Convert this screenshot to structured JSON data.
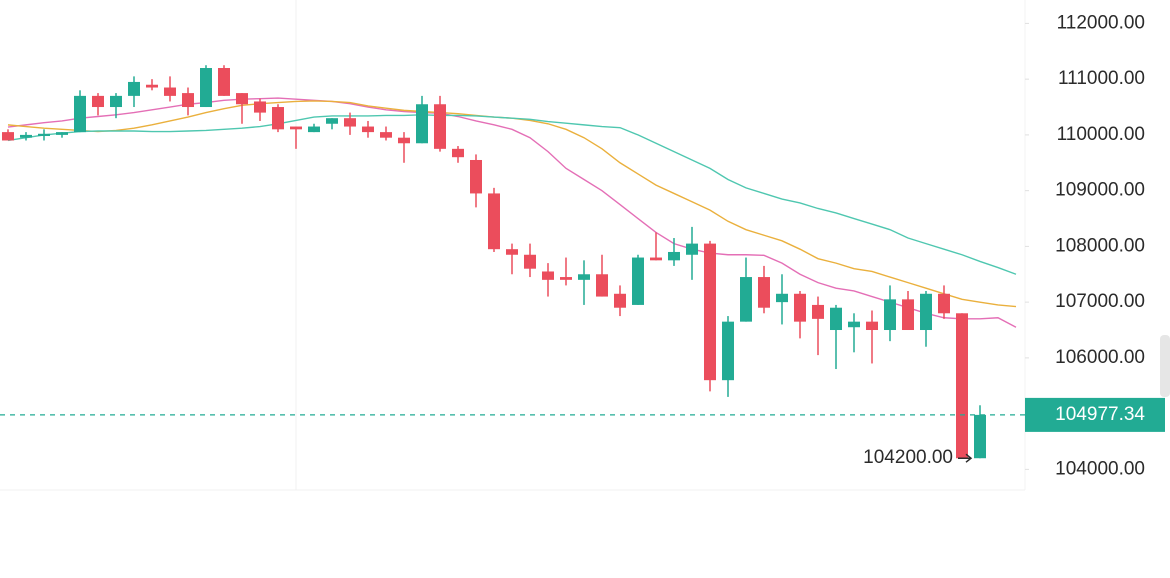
{
  "chart_data": {
    "type": "candlestick",
    "up_color": "#22ab94",
    "down_color": "#eb4d5c",
    "ylim": [
      103630,
      112420
    ],
    "yticks": [
      {
        "value": 104000,
        "label": "104000.00"
      },
      {
        "value": 106000,
        "label": "106000.00"
      },
      {
        "value": 107000,
        "label": "107000.00"
      },
      {
        "value": 108000,
        "label": "108000.00"
      },
      {
        "value": 109000,
        "label": "109000.00"
      },
      {
        "value": 110000,
        "label": "110000.00"
      },
      {
        "value": 111000,
        "label": "111000.00"
      },
      {
        "value": 112000,
        "label": "112000.00"
      }
    ],
    "candles": {
      "open": [
        110050,
        109950,
        109980,
        110000,
        110050,
        110700,
        110500,
        110700,
        110900,
        110850,
        110750,
        110500,
        111200,
        110750,
        110600,
        110500,
        110150,
        110050,
        110200,
        110300,
        110150,
        110050,
        109950,
        109850,
        110550,
        109750,
        109550,
        108950,
        107950,
        107850,
        107550,
        107450,
        107400,
        107500,
        107150,
        106950,
        107800,
        107750,
        107850,
        108050,
        105600,
        106650,
        107450,
        107000,
        107150,
        106950,
        106500,
        106550,
        106650,
        106500,
        107050,
        106500,
        107150,
        106800,
        104200
      ],
      "high": [
        110100,
        110050,
        110100,
        110050,
        110800,
        110750,
        110750,
        111050,
        111000,
        111050,
        110850,
        111250,
        111250,
        110750,
        110650,
        110550,
        110150,
        110200,
        110300,
        110400,
        110250,
        110150,
        110050,
        110700,
        110700,
        109800,
        109650,
        109050,
        108050,
        108050,
        107700,
        107800,
        107750,
        107850,
        107300,
        107850,
        108250,
        108150,
        108350,
        108100,
        106750,
        107800,
        107650,
        107500,
        107200,
        107100,
        106950,
        106800,
        106850,
        107300,
        107200,
        107200,
        107300,
        106800,
        105150
      ],
      "low": [
        109900,
        109900,
        109900,
        109950,
        110050,
        110350,
        110300,
        110500,
        110800,
        110600,
        110350,
        110500,
        110700,
        110200,
        110250,
        110050,
        109750,
        110050,
        110100,
        110000,
        109950,
        109900,
        109500,
        109850,
        109700,
        109500,
        108700,
        107900,
        107500,
        107450,
        107100,
        107300,
        106950,
        107100,
        106750,
        106950,
        107750,
        107650,
        107400,
        105400,
        105300,
        106650,
        106800,
        106600,
        106350,
        106050,
        105800,
        106100,
        105900,
        106300,
        106500,
        106200,
        106700,
        104200,
        104200
      ],
      "close": [
        109900,
        110000,
        110020,
        110050,
        110700,
        110500,
        110700,
        110950,
        110850,
        110700,
        110500,
        111200,
        110700,
        110550,
        110400,
        110100,
        110100,
        110150,
        110300,
        110150,
        110050,
        109950,
        109850,
        110550,
        109750,
        109600,
        108950,
        107950,
        107850,
        107600,
        107400,
        107400,
        107500,
        107100,
        106900,
        107800,
        107750,
        107900,
        108050,
        105600,
        106650,
        107450,
        106900,
        107150,
        106650,
        106700,
        106900,
        106650,
        106500,
        107050,
        106500,
        107150,
        106800,
        104200,
        104977.34
      ]
    },
    "ma_lines": [
      {
        "color": "#e46fb6",
        "values": [
          110140,
          110180,
          110220,
          110250,
          110300,
          110330,
          110360,
          110400,
          110450,
          110500,
          110550,
          110580,
          110620,
          110640,
          110650,
          110660,
          110640,
          110620,
          110600,
          110560,
          110500,
          110450,
          110420,
          110400,
          110390,
          110330,
          110250,
          110180,
          110100,
          109950,
          109700,
          109400,
          109200,
          109000,
          108750,
          108500,
          108250,
          108050,
          107950,
          107880,
          107850,
          107850,
          107840,
          107700,
          107500,
          107350,
          107250,
          107200,
          107100,
          107000,
          106900,
          106800,
          106720,
          106700,
          106700,
          106720,
          106550
        ]
      },
      {
        "color": "#eab03d",
        "values": [
          110180,
          110150,
          110120,
          110100,
          110080,
          110060,
          110080,
          110120,
          110180,
          110250,
          110320,
          110400,
          110470,
          110530,
          110560,
          110580,
          110600,
          110610,
          110600,
          110580,
          110520,
          110480,
          110440,
          110420,
          110400,
          110380,
          110350,
          110320,
          110300,
          110260,
          110200,
          110100,
          109950,
          109750,
          109500,
          109300,
          109100,
          108950,
          108800,
          108650,
          108450,
          108300,
          108200,
          108100,
          107950,
          107780,
          107700,
          107600,
          107550,
          107450,
          107350,
          107250,
          107150,
          107050,
          107000,
          106950,
          106920
        ]
      },
      {
        "color": "#4fc7b0",
        "values": [
          109900,
          109950,
          110000,
          110030,
          110060,
          110070,
          110070,
          110070,
          110060,
          110060,
          110070,
          110080,
          110100,
          110120,
          110150,
          110200,
          110260,
          110320,
          110340,
          110340,
          110340,
          110350,
          110350,
          110360,
          110350,
          110350,
          110340,
          110320,
          110300,
          110280,
          110240,
          110210,
          110180,
          110150,
          110130,
          110000,
          109850,
          109700,
          109550,
          109400,
          109200,
          109050,
          108950,
          108850,
          108780,
          108680,
          108600,
          108500,
          108400,
          108300,
          108150,
          108050,
          107950,
          107850,
          107730,
          107620,
          107500
        ]
      }
    ],
    "current_price": 104977.34,
    "low_marker": {
      "value": 104200,
      "label": "104200.00"
    }
  }
}
